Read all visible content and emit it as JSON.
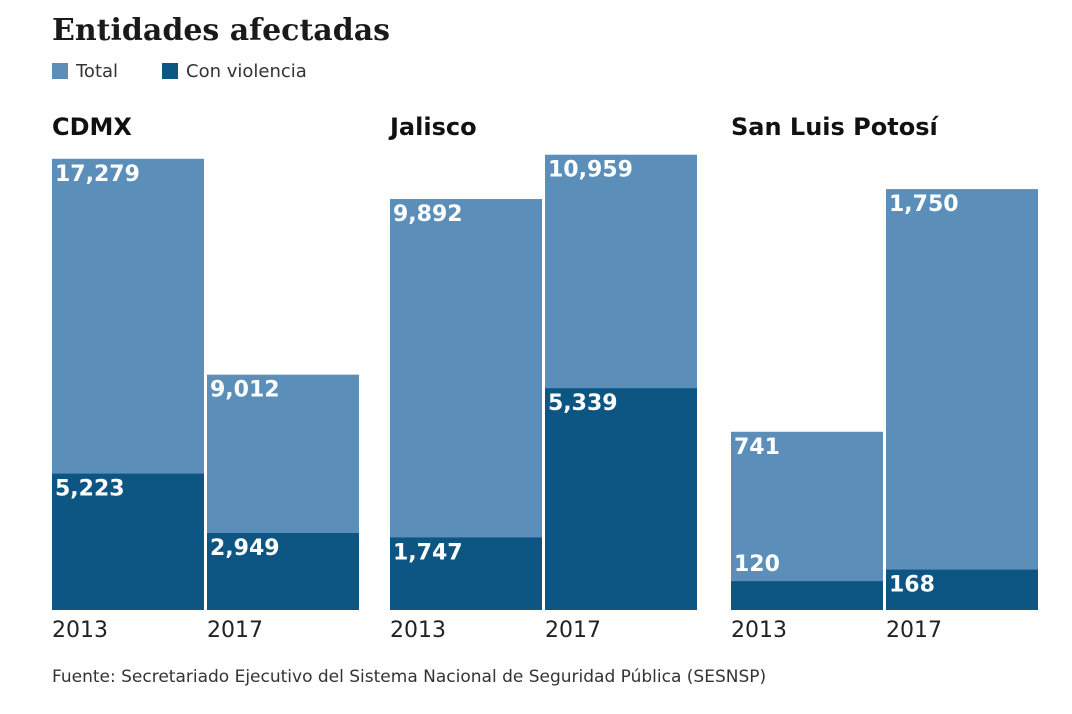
{
  "title": "Entidades afectadas",
  "source": "Fuente: Secretariado Ejecutivo del Sistema Nacional de Seguridad Pública (SESNSP)",
  "chart_data": [
    {
      "type": "bar",
      "title": "CDMX",
      "categories": [
        "2013",
        "2017"
      ],
      "ylim": [
        0,
        17500
      ],
      "series": [
        {
          "name": "Total",
          "color": "#5b8fba",
          "values": [
            17279,
            9012
          ],
          "value_labels": [
            "17,279",
            "9,012"
          ]
        },
        {
          "name": "Con violencia",
          "color": "#0d5582",
          "values": [
            5223,
            2949
          ],
          "value_labels": [
            "5,223",
            "2,949"
          ]
        }
      ]
    },
    {
      "type": "bar",
      "title": "Jalisco",
      "categories": [
        "2013",
        "2017"
      ],
      "ylim": [
        0,
        11000
      ],
      "series": [
        {
          "name": "Total",
          "color": "#5b8fba",
          "values": [
            9892,
            10959
          ],
          "value_labels": [
            "9,892",
            "10,959"
          ]
        },
        {
          "name": "Con violencia",
          "color": "#0d5582",
          "values": [
            1747,
            5339
          ],
          "value_labels": [
            "1,747",
            "5,339"
          ]
        }
      ]
    },
    {
      "type": "bar",
      "title": "San Luis Potosí",
      "categories": [
        "2013",
        "2017"
      ],
      "ylim": [
        0,
        1900
      ],
      "series": [
        {
          "name": "Total",
          "color": "#5b8fba",
          "values": [
            741,
            1750
          ],
          "value_labels": [
            "741",
            "1,750"
          ]
        },
        {
          "name": "Con violencia",
          "color": "#0d5582",
          "values": [
            120,
            168
          ],
          "value_labels": [
            "120",
            "168"
          ]
        }
      ]
    }
  ]
}
